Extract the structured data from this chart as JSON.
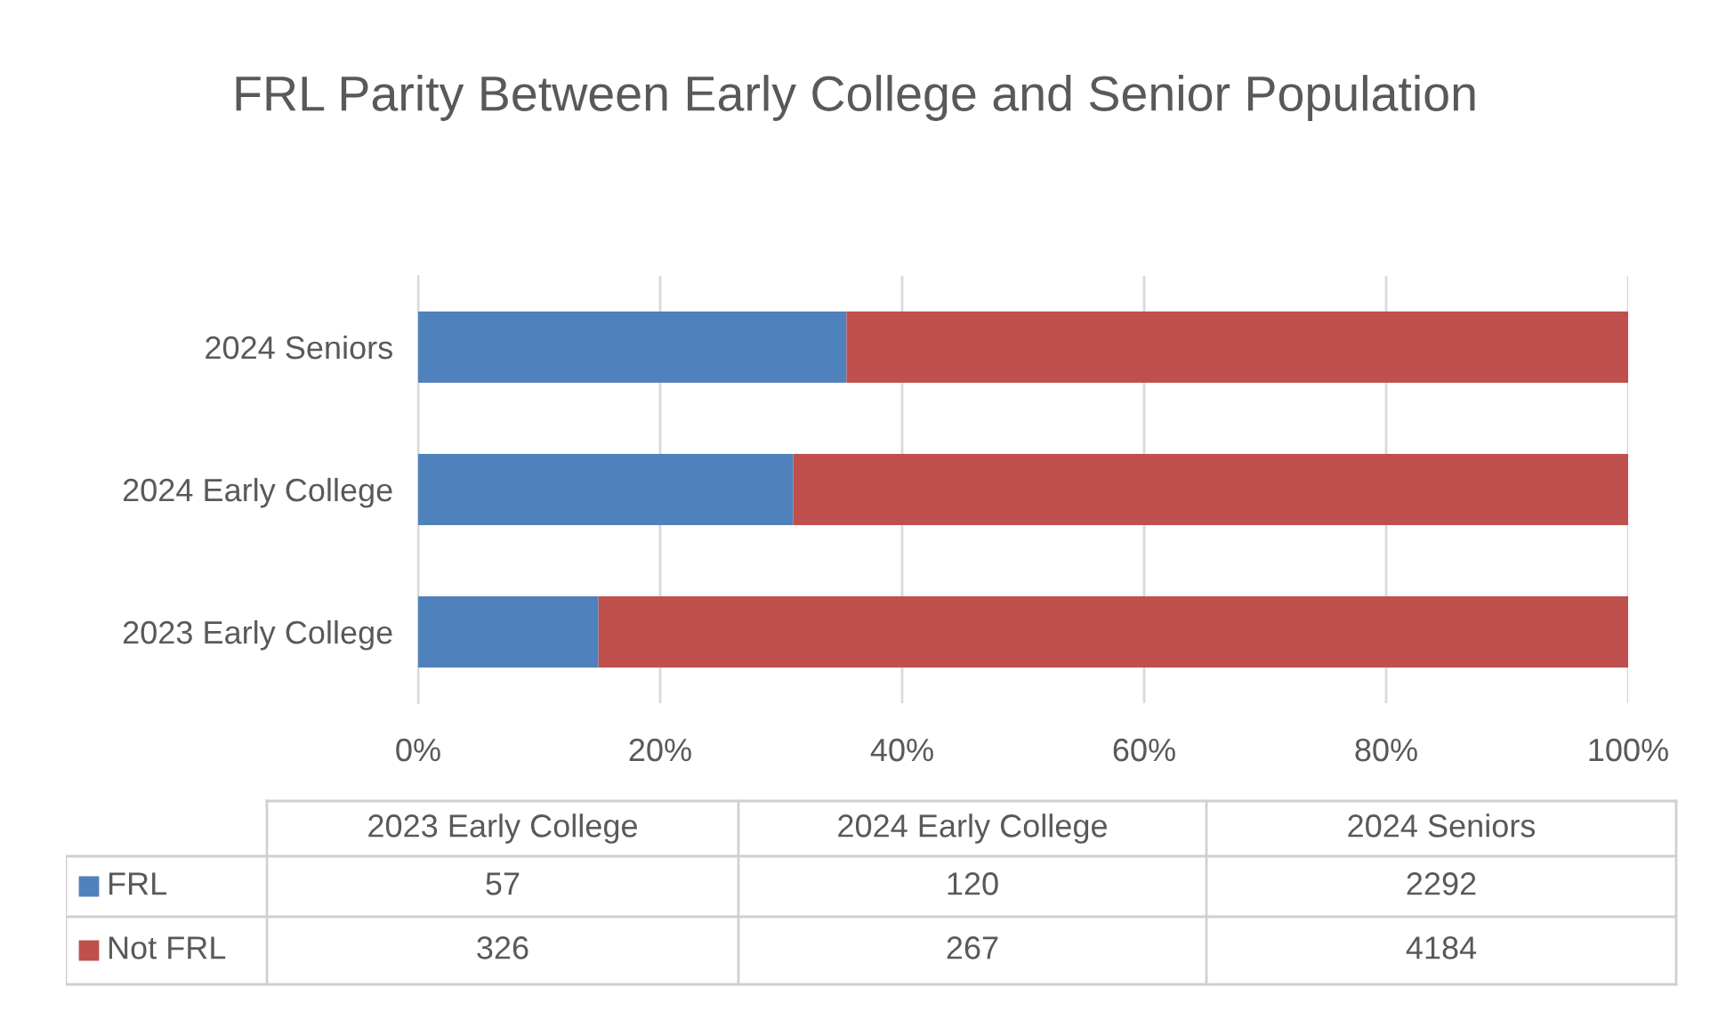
{
  "chart_data": [
    {
      "type": "bar",
      "orientation": "horizontal",
      "stacked": true,
      "title": "FRL Parity Between Early College and Senior Population",
      "categories": [
        "2024 Seniors",
        "2024 Early College",
        "2023 Early College"
      ],
      "series": [
        {
          "color": "#4f81bd",
          "values": [
            35.4,
            31.0,
            14.9
          ]
        },
        {
          "color": "#c0504d",
          "values": [
            64.6,
            69.0,
            85.1
          ]
        }
      ],
      "xlim": [
        0,
        100
      ],
      "xticks": [
        {
          "value": 0,
          "label": "0%"
        },
        {
          "value": 20,
          "label": "20%"
        },
        {
          "value": 40,
          "label": "40%"
        },
        {
          "value": 60,
          "label": "60%"
        },
        {
          "value": 80,
          "label": "80%"
        },
        {
          "value": 100,
          "label": "100%"
        }
      ],
      "grid": "x"
    },
    {
      "type": "other",
      "data_labels": true,
      "categories": [
        "2023 Early College",
        "2024 Early College",
        "2024 Seniors"
      ],
      "series": [
        {
          "name": "FRL",
          "color": "#4f81bd",
          "values": [
            57,
            120,
            2292
          ]
        },
        {
          "name": "Not FRL",
          "color": "#c0504d",
          "values": [
            326,
            267,
            4184
          ]
        }
      ]
    }
  ]
}
